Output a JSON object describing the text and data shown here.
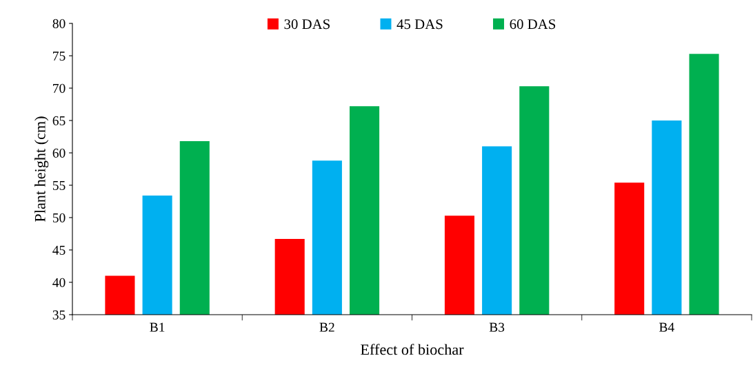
{
  "chart_data": {
    "type": "bar",
    "xlabel": "Effect of biochar",
    "ylabel": "Plant height (cm)",
    "categories": [
      "B1",
      "B2",
      "B3",
      "B4"
    ],
    "series": [
      {
        "name": "30 DAS",
        "color": "#ff0000",
        "values": [
          41.0,
          46.7,
          50.3,
          55.4
        ]
      },
      {
        "name": "45 DAS",
        "color": "#00b0f0",
        "values": [
          53.4,
          58.8,
          61.0,
          65.0
        ]
      },
      {
        "name": "60 DAS",
        "color": "#00b050",
        "values": [
          61.8,
          67.2,
          70.3,
          75.3
        ]
      }
    ],
    "ylim": [
      35,
      80
    ],
    "yticks": [
      35,
      40,
      45,
      50,
      55,
      60,
      65,
      70,
      75,
      80
    ],
    "grid": false,
    "legend": "top"
  }
}
